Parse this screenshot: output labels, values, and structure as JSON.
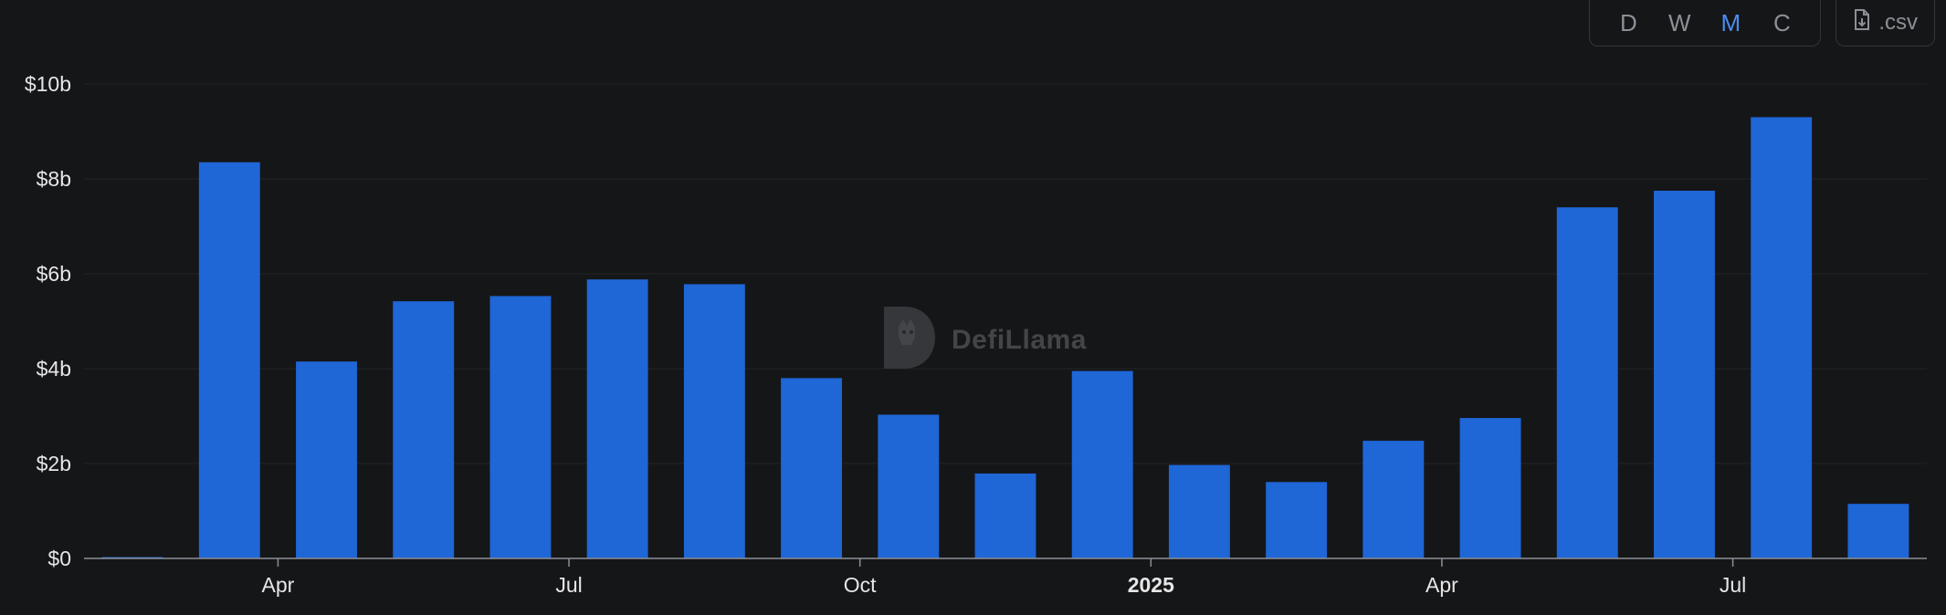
{
  "toolbar": {
    "intervals": [
      {
        "label": "D",
        "active": false
      },
      {
        "label": "W",
        "active": false
      },
      {
        "label": "M",
        "active": true
      },
      {
        "label": "C",
        "active": false
      }
    ],
    "csv_label": ".csv",
    "csv_icon": "file-download-icon"
  },
  "watermark": {
    "text": "DefiLlama",
    "icon": "llama-logo-icon"
  },
  "colors": {
    "bar": "#1f66d6",
    "background": "#151618",
    "grid": "#222428",
    "axis": "#8c8f96"
  },
  "chart_data": {
    "type": "bar",
    "x": [
      "2024-02",
      "2024-03",
      "2024-04",
      "2024-05",
      "2024-06",
      "2024-07",
      "2024-08",
      "2024-09",
      "2024-10",
      "2024-11",
      "2024-12",
      "2025-01",
      "2025-02",
      "2025-03",
      "2025-04",
      "2025-05",
      "2025-06",
      "2025-07",
      "2025-08"
    ],
    "values": [
      0.02,
      8.35,
      4.15,
      5.42,
      5.53,
      5.88,
      5.78,
      3.8,
      3.03,
      1.79,
      3.95,
      1.97,
      1.61,
      2.48,
      2.96,
      7.4,
      7.75,
      9.3,
      1.15
    ],
    "ylim": [
      0,
      10
    ],
    "yticks": [
      {
        "value": 0,
        "label": "$0"
      },
      {
        "value": 2,
        "label": "$2b"
      },
      {
        "value": 4,
        "label": "$4b"
      },
      {
        "value": 6,
        "label": "$6b"
      },
      {
        "value": 8,
        "label": "$8b"
      },
      {
        "value": 10,
        "label": "$10b"
      }
    ],
    "xticks": [
      {
        "at": "2024-04",
        "label": "Apr",
        "bold": false
      },
      {
        "at": "2024-07",
        "label": "Jul",
        "bold": false
      },
      {
        "at": "2024-10",
        "label": "Oct",
        "bold": false
      },
      {
        "at": "2025-01",
        "label": "2025",
        "bold": true
      },
      {
        "at": "2025-04",
        "label": "Apr",
        "bold": false
      },
      {
        "at": "2025-07",
        "label": "Jul",
        "bold": false
      }
    ],
    "grid": true
  }
}
